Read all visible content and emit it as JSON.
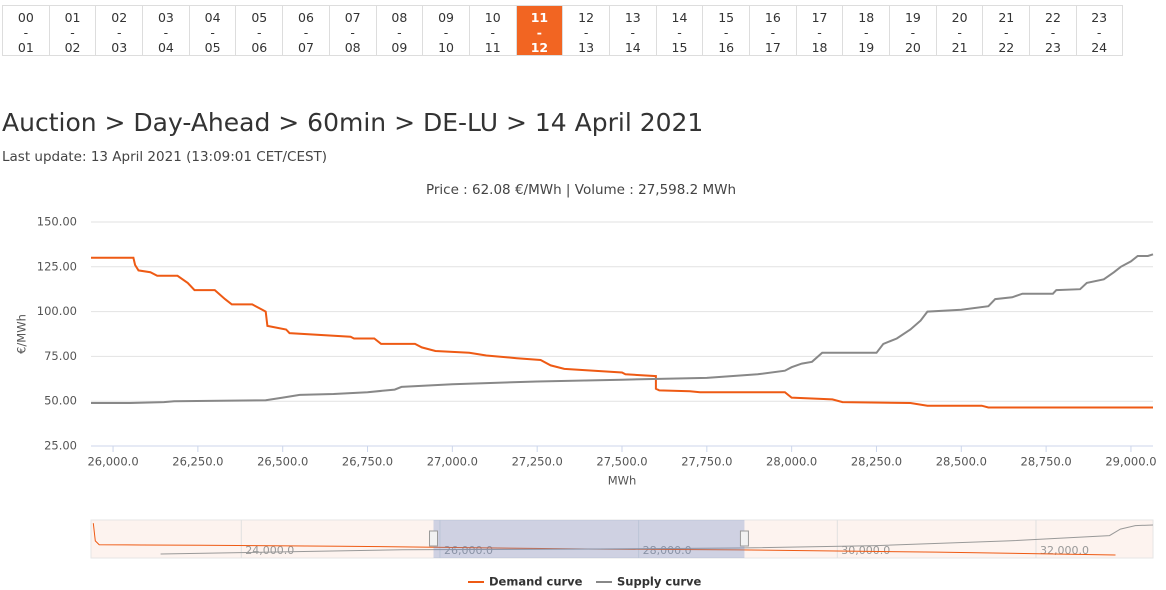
{
  "hours": [
    {
      "from": "00",
      "to": "01"
    },
    {
      "from": "01",
      "to": "02"
    },
    {
      "from": "02",
      "to": "03"
    },
    {
      "from": "03",
      "to": "04"
    },
    {
      "from": "04",
      "to": "05"
    },
    {
      "from": "05",
      "to": "06"
    },
    {
      "from": "06",
      "to": "07"
    },
    {
      "from": "07",
      "to": "08"
    },
    {
      "from": "08",
      "to": "09"
    },
    {
      "from": "09",
      "to": "10"
    },
    {
      "from": "10",
      "to": "11"
    },
    {
      "from": "11",
      "to": "12"
    },
    {
      "from": "12",
      "to": "13"
    },
    {
      "from": "13",
      "to": "14"
    },
    {
      "from": "14",
      "to": "15"
    },
    {
      "from": "15",
      "to": "16"
    },
    {
      "from": "16",
      "to": "17"
    },
    {
      "from": "17",
      "to": "18"
    },
    {
      "from": "18",
      "to": "19"
    },
    {
      "from": "19",
      "to": "20"
    },
    {
      "from": "20",
      "to": "21"
    },
    {
      "from": "21",
      "to": "22"
    },
    {
      "from": "22",
      "to": "23"
    },
    {
      "from": "23",
      "to": "24"
    }
  ],
  "separator": "-",
  "selected_hour": 11,
  "breadcrumb": "Auction > Day-Ahead > 60min > DE-LU > 14 April 2021",
  "last_update": "Last update: 13 April 2021 (13:09:01 CET/CEST)",
  "chart_data": [
    {
      "type": "line",
      "subtitle": "Price : 62.08 €/MWh | Volume : 27,598.2 MWh",
      "y_label": "€/MWh",
      "x_label": "MWh",
      "xlim": [
        25935,
        29065
      ],
      "ylim": [
        25,
        150
      ],
      "xticks": [
        {
          "value": 26000,
          "label": "26,000.0"
        },
        {
          "value": 26250,
          "label": "26,250.0"
        },
        {
          "value": 26500,
          "label": "26,500.0"
        },
        {
          "value": 26750,
          "label": "26,750.0"
        },
        {
          "value": 27000,
          "label": "27,000.0"
        },
        {
          "value": 27250,
          "label": "27,250.0"
        },
        {
          "value": 27500,
          "label": "27,500.0"
        },
        {
          "value": 27750,
          "label": "27,750.0"
        },
        {
          "value": 28000,
          "label": "28,000.0"
        },
        {
          "value": 28250,
          "label": "28,250.0"
        },
        {
          "value": 28500,
          "label": "28,500.0"
        },
        {
          "value": 28750,
          "label": "28,750.0"
        },
        {
          "value": 29000,
          "label": "29,000.0"
        }
      ],
      "yticks": [
        {
          "value": 25,
          "label": "25.00"
        },
        {
          "value": 50,
          "label": "50.00"
        },
        {
          "value": 75,
          "label": "75.00"
        },
        {
          "value": 100,
          "label": "100.00"
        },
        {
          "value": 125,
          "label": "125.00"
        },
        {
          "value": 150,
          "label": "150.00"
        }
      ],
      "grid": "y",
      "legend": "bottom",
      "series": [
        {
          "name": "Demand curve",
          "color": "#ee5a14",
          "x": [
            25935,
            26060,
            26065,
            26075,
            26110,
            26130,
            26190,
            26220,
            26240,
            26300,
            26330,
            26350,
            26410,
            26440,
            26450,
            26455,
            26510,
            26520,
            26700,
            26710,
            26770,
            26790,
            26890,
            26910,
            26950,
            27050,
            27100,
            27190,
            27260,
            27290,
            27330,
            27500,
            27510,
            27600,
            27600,
            27610,
            27700,
            27730,
            27980,
            28000,
            28120,
            28150,
            28350,
            28400,
            28560,
            28580,
            29065
          ],
          "values": [
            130,
            130,
            126,
            123,
            122,
            120,
            120,
            116,
            112,
            112,
            107,
            104,
            104,
            101,
            100,
            92,
            90,
            88,
            86,
            85,
            85,
            82,
            82,
            80,
            78,
            77,
            75.5,
            74,
            73,
            70,
            68,
            66,
            65,
            64,
            57,
            56,
            55.5,
            55,
            55,
            52,
            51,
            49.5,
            49,
            47.5,
            47.5,
            46.5,
            46.5
          ]
        },
        {
          "name": "Supply curve",
          "color": "#888888",
          "x": [
            25935,
            26050,
            26150,
            26180,
            26450,
            26500,
            26550,
            26650,
            26750,
            26830,
            26850,
            27000,
            27250,
            27500,
            27750,
            27900,
            27980,
            28000,
            28030,
            28060,
            28090,
            28250,
            28270,
            28310,
            28350,
            28380,
            28400,
            28500,
            28580,
            28600,
            28650,
            28680,
            28770,
            28780,
            28850,
            28870,
            28920,
            28950,
            28970,
            29000,
            29020,
            29050,
            29065
          ],
          "values": [
            49,
            49,
            49.5,
            50,
            50.5,
            52,
            53.5,
            54,
            55,
            56.5,
            58,
            59.5,
            61,
            62,
            63,
            65,
            67,
            69,
            71,
            72,
            77,
            77,
            82,
            85,
            90,
            95,
            100,
            101,
            103,
            107,
            108,
            110,
            110,
            112,
            112.5,
            116,
            118,
            122,
            125,
            128,
            131,
            131,
            132
          ]
        }
      ]
    },
    {
      "type": "line",
      "xlim": [
        22487,
        33178
      ],
      "ylim": [
        -91,
        555
      ],
      "xticks": [
        {
          "value": 24000,
          "label": "24,000.0"
        },
        {
          "value": 26000,
          "label": "26,000.0"
        },
        {
          "value": 28000,
          "label": "28,000.0"
        },
        {
          "value": 30000,
          "label": "30,000.0"
        },
        {
          "value": 32000,
          "label": "32,000.0"
        }
      ],
      "series": [
        {
          "color": "#ee5a14",
          "x": [
            22510,
            22530,
            22570,
            23000,
            23600,
            25000,
            27600,
            29000,
            31000,
            32800
          ],
          "values": [
            500,
            200,
            135,
            130,
            125,
            110,
            60,
            47,
            10,
            -40
          ]
        },
        {
          "color": "#999999",
          "x": [
            23188,
            25624,
            27600,
            29000,
            30400,
            31720,
            32740,
            32850,
            33000,
            33178
          ],
          "values": [
            -23,
            50,
            62,
            79,
            120,
            200,
            290,
            400,
            460,
            470
          ]
        }
      ]
    }
  ]
}
